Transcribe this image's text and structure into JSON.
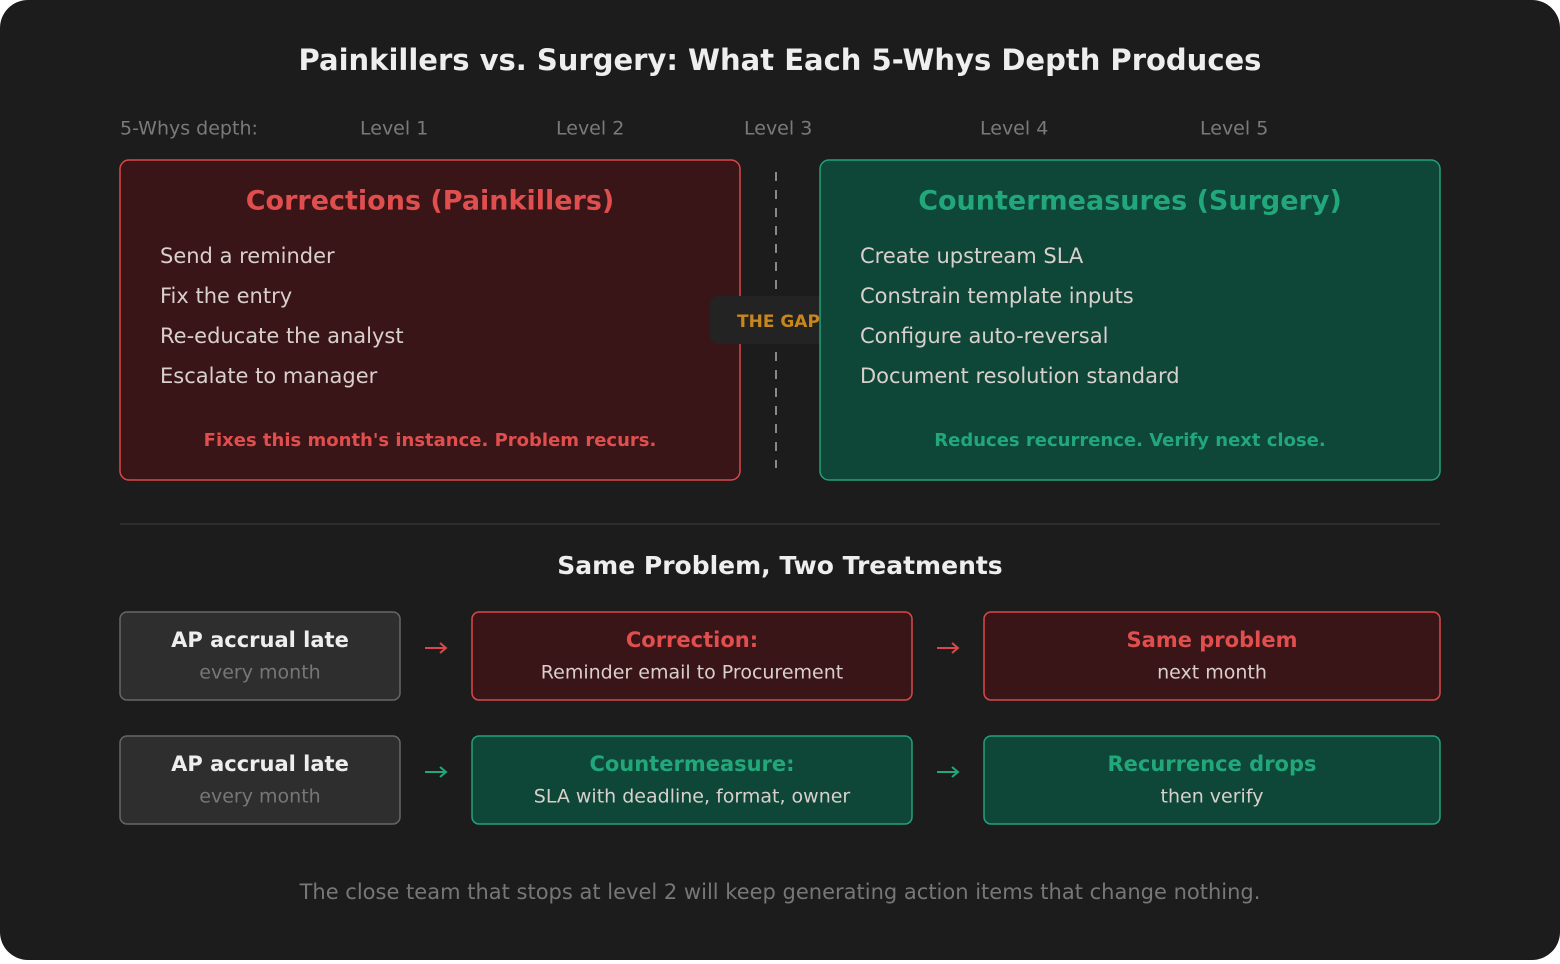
{
  "title": "Painkillers vs. Surgery: What Each 5-Whys Depth Produces",
  "depth_scale": {
    "label": "5-Whys depth:",
    "levels": [
      "Level 1",
      "Level 2",
      "Level 3",
      "Level 4",
      "Level 5"
    ]
  },
  "corrections": {
    "title": "Corrections (Painkillers)",
    "items": [
      "Send a reminder",
      "Fix the entry",
      "Re-educate the analyst",
      "Escalate to manager"
    ],
    "note": "Fixes this month's instance. Problem recurs."
  },
  "gap_label": "THE GAP",
  "countermeasures": {
    "title": "Countermeasures (Surgery)",
    "items": [
      "Create upstream SLA",
      "Constrain template inputs",
      "Configure auto-reversal",
      "Document resolution standard"
    ],
    "note": "Reduces recurrence. Verify next close."
  },
  "comparison": {
    "title": "Same Problem, Two Treatments",
    "rows": [
      {
        "problem": {
          "title": "AP accrual late",
          "detail": "every month"
        },
        "treatment": {
          "title": "Correction:",
          "detail": "Reminder email to Procurement"
        },
        "outcome": {
          "title": "Same problem",
          "detail": "next month"
        }
      },
      {
        "problem": {
          "title": "AP accrual late",
          "detail": "every month"
        },
        "treatment": {
          "title": "Countermeasure:",
          "detail": "SLA with deadline, format, owner"
        },
        "outcome": {
          "title": "Recurrence drops",
          "detail": "then verify"
        }
      }
    ]
  },
  "footer": "The close team that stops at level 2 will keep generating action items that change nothing."
}
